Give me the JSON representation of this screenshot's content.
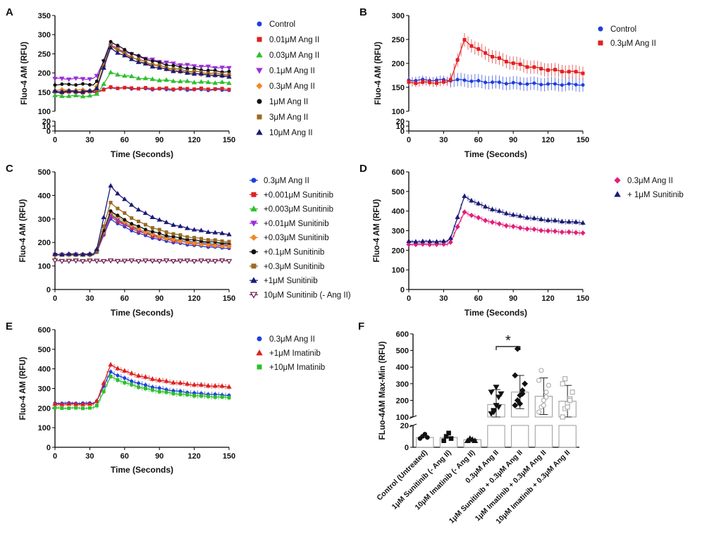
{
  "figure": {
    "panels": [
      "A",
      "B",
      "C",
      "D",
      "E",
      "F"
    ],
    "significance": "*"
  },
  "chart_data": [
    {
      "id": "A",
      "type": "line",
      "xlabel": "Time (Seconds)",
      "ylabel": "Fluo-4 AM (RFU)",
      "xticks": [
        0,
        30,
        60,
        90,
        120,
        150
      ],
      "xlim": [
        0,
        150
      ],
      "upper_ylim": [
        100,
        350
      ],
      "upper_yticks": [
        100,
        150,
        200,
        250,
        300,
        350
      ],
      "lower_ylim": [
        0,
        20
      ],
      "lower_yticks": [
        0,
        10,
        20
      ],
      "series": [
        {
          "name": "Control",
          "color": "#1f3fdd",
          "marker": "circle",
          "baseline": 150,
          "peak": 162,
          "end": 155
        },
        {
          "name": "0.01μM Ang II",
          "color": "#e02020",
          "marker": "square",
          "baseline": 150,
          "peak": 162,
          "end": 158
        },
        {
          "name": "0.03μM Ang II",
          "color": "#2ec02e",
          "marker": "triangle-up",
          "baseline": 140,
          "peak": 200,
          "end": 172
        },
        {
          "name": "0.1μM Ang II",
          "color": "#9b30d8",
          "marker": "triangle-down",
          "baseline": 185,
          "peak": 272,
          "end": 208
        },
        {
          "name": "0.3μM Ang II",
          "color": "#f08a24",
          "marker": "diamond",
          "baseline": 155,
          "peak": 272,
          "end": 185
        },
        {
          "name": "1μM Ang II",
          "color": "#111111",
          "marker": "circle",
          "baseline": 170,
          "peak": 283,
          "end": 196
        },
        {
          "name": "3μM Ang II",
          "color": "#9a6a22",
          "marker": "square",
          "baseline": 152,
          "peak": 272,
          "end": 190
        },
        {
          "name": "10μM Ang II",
          "color": "#1a1a78",
          "marker": "triangle-up",
          "baseline": 152,
          "peak": 265,
          "end": 185
        }
      ]
    },
    {
      "id": "B",
      "type": "line",
      "xlabel": "Time (Seconds)",
      "ylabel": "Fluo-4 AM (RFU)",
      "xticks": [
        0,
        30,
        60,
        90,
        120,
        150
      ],
      "xlim": [
        0,
        150
      ],
      "upper_ylim": [
        100,
        300
      ],
      "upper_yticks": [
        100,
        150,
        200,
        250,
        300
      ],
      "lower_ylim": [
        0,
        20
      ],
      "lower_yticks": [
        0,
        10,
        20
      ],
      "series": [
        {
          "name": "Control",
          "color": "#1f3fdd",
          "marker": "circle",
          "baseline": 165,
          "peak": 165,
          "end": 155
        },
        {
          "name": "0.3μM Ang II",
          "color": "#e02020",
          "marker": "square",
          "baseline": 160,
          "peak": 248,
          "end": 175
        }
      ]
    },
    {
      "id": "C",
      "type": "line",
      "xlabel": "Time (Seconds)",
      "ylabel": "Fluo-4 AM (RFU)",
      "xticks": [
        0,
        30,
        60,
        90,
        120,
        150
      ],
      "xlim": [
        0,
        150
      ],
      "ylim": [
        0,
        500
      ],
      "yticks": [
        0,
        100,
        200,
        300,
        400,
        500
      ],
      "series": [
        {
          "name": "0.3μM Ang II",
          "color": "#1f3fdd",
          "marker": "circle",
          "baseline": 148,
          "peak": 300,
          "end": 165
        },
        {
          "name": "+0.001μM Sunitinib",
          "color": "#e02020",
          "marker": "square",
          "baseline": 148,
          "peak": 310,
          "end": 172
        },
        {
          "name": "+0.003μM Sunitinib",
          "color": "#2ec02e",
          "marker": "triangle-up",
          "baseline": 148,
          "peak": 320,
          "end": 180
        },
        {
          "name": "+0.01μM Sunitinib",
          "color": "#9b30d8",
          "marker": "triangle-down",
          "baseline": 148,
          "peak": 315,
          "end": 175
        },
        {
          "name": "+0.03μM Sunitinib",
          "color": "#f08a24",
          "marker": "diamond",
          "baseline": 148,
          "peak": 330,
          "end": 170
        },
        {
          "name": "+0.1μM Sunitinib",
          "color": "#111111",
          "marker": "circle",
          "baseline": 148,
          "peak": 335,
          "end": 185
        },
        {
          "name": "+0.3μM Sunitinib",
          "color": "#9a6a22",
          "marker": "square",
          "baseline": 148,
          "peak": 370,
          "end": 190
        },
        {
          "name": "+1μM Sunitinib",
          "color": "#1a1a78",
          "marker": "triangle-up",
          "baseline": 150,
          "peak": 440,
          "end": 218
        },
        {
          "name": "10μM Sunitinib (- Ang II)",
          "color": "#6a1a4a",
          "marker": "triangle-down-open",
          "baseline": 122,
          "peak": 122,
          "end": 122
        }
      ]
    },
    {
      "id": "D",
      "type": "line",
      "xlabel": "Time (Seconds)",
      "ylabel": "Fluo-4 AM (RFU)",
      "xticks": [
        0,
        30,
        60,
        90,
        120,
        150
      ],
      "xlim": [
        0,
        150
      ],
      "ylim": [
        0,
        600
      ],
      "yticks": [
        0,
        100,
        200,
        300,
        400,
        500,
        600
      ],
      "series": [
        {
          "name": "0.3μM Ang II",
          "color": "#e0207a",
          "marker": "diamond",
          "baseline": 230,
          "peak": 395,
          "end": 280
        },
        {
          "name": "+ 1μM Sunitinib",
          "color": "#1a1a78",
          "marker": "triangle-up",
          "baseline": 245,
          "peak": 475,
          "end": 330
        }
      ]
    },
    {
      "id": "E",
      "type": "line",
      "xlabel": "Time (Seconds)",
      "ylabel": "Fluo-4 AM (RFU)",
      "xticks": [
        0,
        30,
        60,
        90,
        120,
        150
      ],
      "xlim": [
        0,
        150
      ],
      "ylim": [
        0,
        600
      ],
      "yticks": [
        0,
        100,
        200,
        300,
        400,
        500,
        600
      ],
      "series": [
        {
          "name": "0.3μM Ang II",
          "color": "#1f3fdd",
          "marker": "circle",
          "baseline": 225,
          "peak": 385,
          "end": 255
        },
        {
          "name": "+1μM Imatinib",
          "color": "#e02020",
          "marker": "triangle-up",
          "baseline": 220,
          "peak": 420,
          "end": 300
        },
        {
          "name": "+10μM Imatinib",
          "color": "#2ec02e",
          "marker": "square",
          "baseline": 200,
          "peak": 360,
          "end": 245
        }
      ]
    },
    {
      "id": "F",
      "type": "bar",
      "ylabel": "FLuo-4AM Max-Min (RFU)",
      "upper_ylim": [
        100,
        600
      ],
      "upper_yticks": [
        100,
        200,
        300,
        400,
        500,
        600
      ],
      "lower_ylim": [
        0,
        20
      ],
      "lower_yticks": [
        0,
        20
      ],
      "categories": [
        "Control (Untreated)",
        "1μM Sunitinib (- Ang II)",
        "10μM Imatinib (- Ang II)",
        "0.3μM Ang II",
        "1μM Sunitinib + 0.3μM Ang II",
        "1μM Imatinib + 0.3μM Ang II",
        "10μM Imatinib + 0.3μM Ang II"
      ],
      "values": [
        9,
        9,
        7,
        175,
        250,
        225,
        195
      ],
      "errors": [
        3,
        5,
        2,
        90,
        100,
        110,
        95
      ],
      "bar_colors": [
        "#ffffff",
        "#ffffff",
        "#ffffff",
        "#ffffff",
        "#ffffff",
        "#ffffff",
        "#ffffff"
      ],
      "point_markers": [
        "circle",
        "square",
        "triangle-up",
        "triangle-down",
        "diamond",
        "circle-open",
        "square-open"
      ],
      "points": [
        [
          8,
          10,
          12,
          9
        ],
        [
          6,
          10,
          13,
          8
        ],
        [
          6,
          8,
          7,
          6
        ],
        [
          120,
          140,
          170,
          220,
          240,
          250,
          130,
          280,
          160
        ],
        [
          170,
          200,
          230,
          260,
          300,
          350,
          510,
          180,
          240
        ],
        [
          130,
          160,
          200,
          250,
          290,
          320,
          380,
          170,
          220
        ],
        [
          100,
          150,
          180,
          210,
          250,
          300,
          330,
          160,
          200
        ]
      ],
      "annotation": {
        "text": "*",
        "between": [
          3,
          4
        ]
      }
    }
  ]
}
